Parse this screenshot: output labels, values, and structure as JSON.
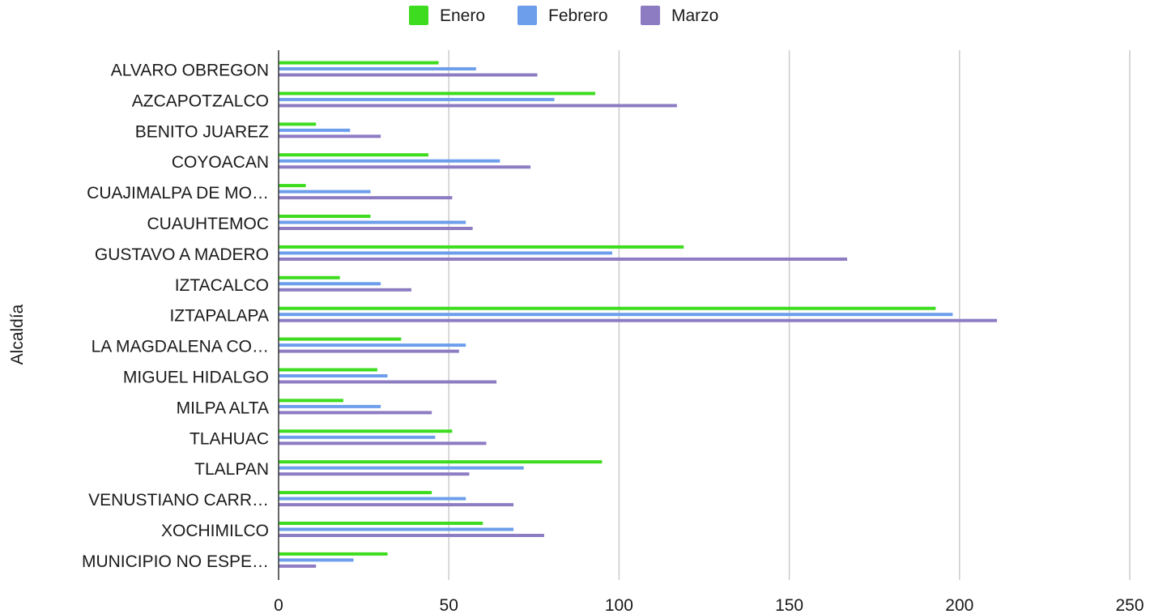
{
  "chart_data": {
    "type": "bar",
    "orientation": "horizontal",
    "categories": [
      "ALVARO OBREGON",
      "AZCAPOTZALCO",
      "BENITO JUAREZ",
      "COYOACAN",
      "CUAJIMALPA DE MO…",
      "CUAUHTEMOC",
      "GUSTAVO A MADERO",
      "IZTACALCO",
      "IZTAPALAPA",
      "LA MAGDALENA CO…",
      "MIGUEL HIDALGO",
      "MILPA ALTA",
      "TLAHUAC",
      "TLALPAN",
      "VENUSTIANO CARR…",
      "XOCHIMILCO",
      "MUNICIPIO NO ESPE…"
    ],
    "series": [
      {
        "name": "Enero",
        "color": "#3ddc1f",
        "values": [
          47,
          93,
          11,
          44,
          8,
          27,
          119,
          18,
          193,
          36,
          29,
          19,
          51,
          95,
          45,
          60,
          32
        ]
      },
      {
        "name": "Febrero",
        "color": "#6d9eeb",
        "values": [
          58,
          81,
          21,
          65,
          27,
          55,
          98,
          30,
          198,
          55,
          32,
          30,
          46,
          72,
          55,
          69,
          22
        ]
      },
      {
        "name": "Marzo",
        "color": "#8e7cc3",
        "values": [
          76,
          117,
          30,
          74,
          51,
          57,
          167,
          39,
          211,
          53,
          64,
          45,
          61,
          56,
          69,
          78,
          11
        ]
      }
    ],
    "xlim": [
      0,
      250
    ],
    "xticks": [
      0,
      50,
      100,
      150,
      200,
      250
    ],
    "xlabel": "",
    "ylabel": "Alcaldía",
    "title": "",
    "grid": "vertical",
    "legend_position": "top-center"
  }
}
